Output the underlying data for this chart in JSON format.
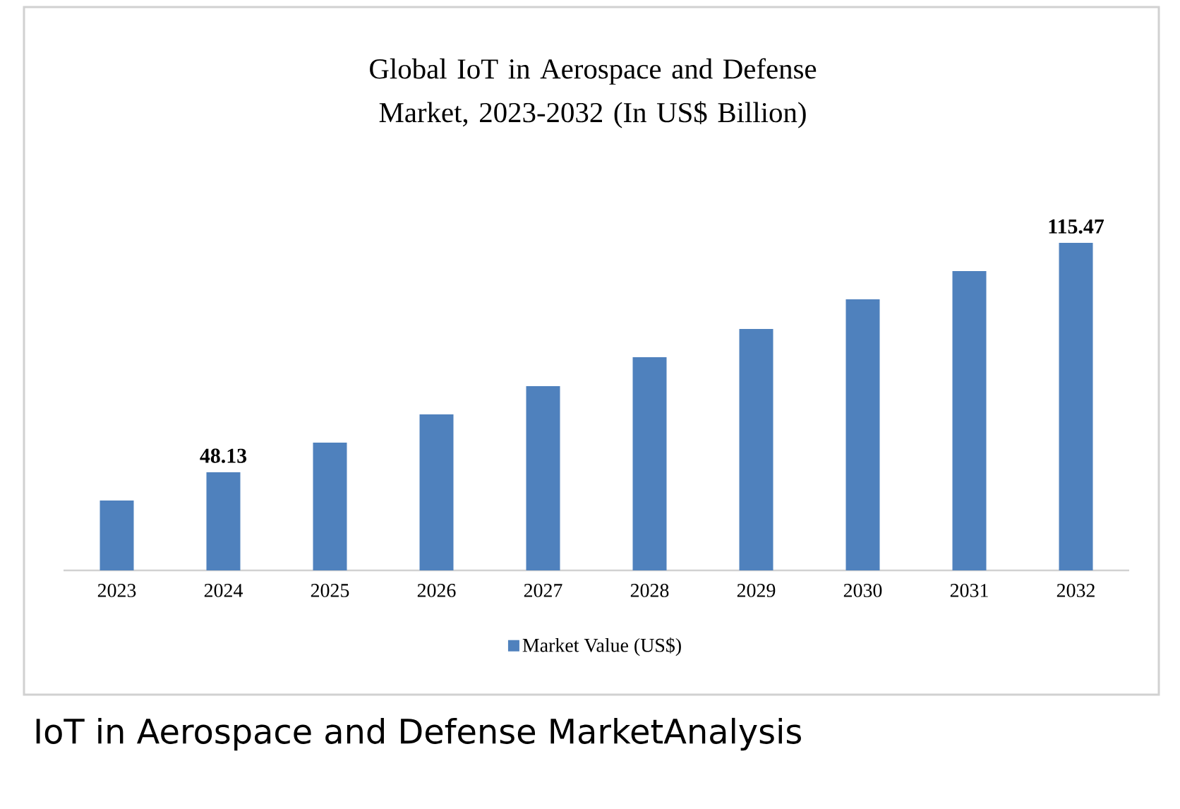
{
  "chart_data": {
    "type": "bar",
    "title": "Global IoT in Aerospace and Defense Market, 2023-2032 (In US$ Billion)",
    "categories": [
      "2023",
      "2024",
      "2025",
      "2026",
      "2027",
      "2028",
      "2029",
      "2030",
      "2031",
      "2032"
    ],
    "series": [
      {
        "name": "Market Value (US$)",
        "color": "#4f81bd",
        "values": [
          39.8,
          48.13,
          56.8,
          65.1,
          73.4,
          81.9,
          90.2,
          98.9,
          107.2,
          115.47
        ],
        "value_labels": [
          null,
          "48.13",
          null,
          null,
          null,
          null,
          null,
          null,
          null,
          "115.47"
        ]
      }
    ],
    "ylim": [
      19.3,
      115.47
    ],
    "legend": "bottom",
    "annotations": [
      "IoT in Aerospace and Defense MarketAnalysis"
    ]
  }
}
